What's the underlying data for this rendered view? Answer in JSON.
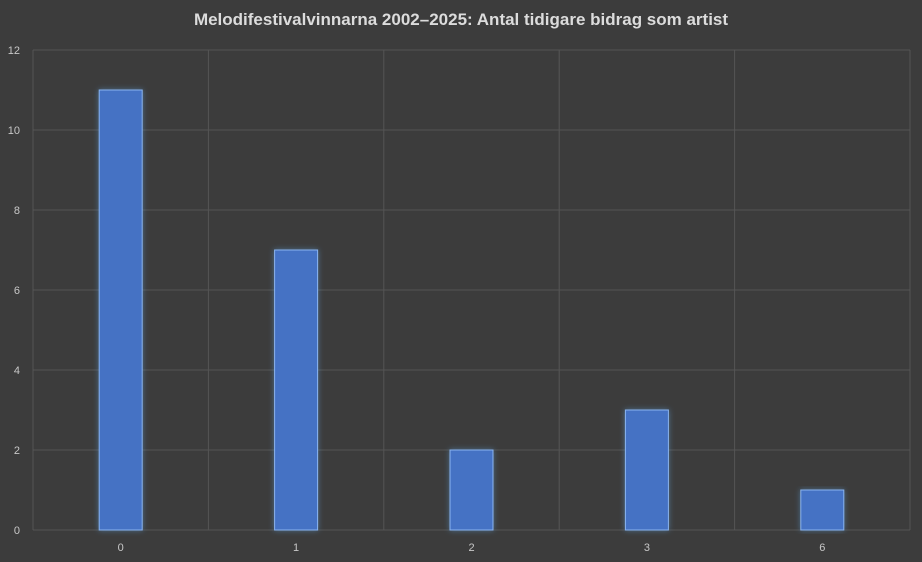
{
  "chart_data": {
    "type": "bar",
    "title": "Melodifestivalvinnarna 2002–2025: Antal tidigare bidrag som artist",
    "xlabel": "",
    "ylabel": "",
    "categories": [
      "0",
      "1",
      "2",
      "3",
      "6"
    ],
    "values": [
      11,
      7,
      2,
      3,
      1
    ],
    "ylim": [
      0,
      12
    ],
    "yticks": [
      0,
      2,
      4,
      6,
      8,
      10,
      12
    ],
    "grid": true,
    "legend": "none",
    "colors": {
      "bar": "#4472c4",
      "bar_edge": "#8ab4f0",
      "background": "#3c3c3c",
      "grid": "#555555"
    }
  }
}
